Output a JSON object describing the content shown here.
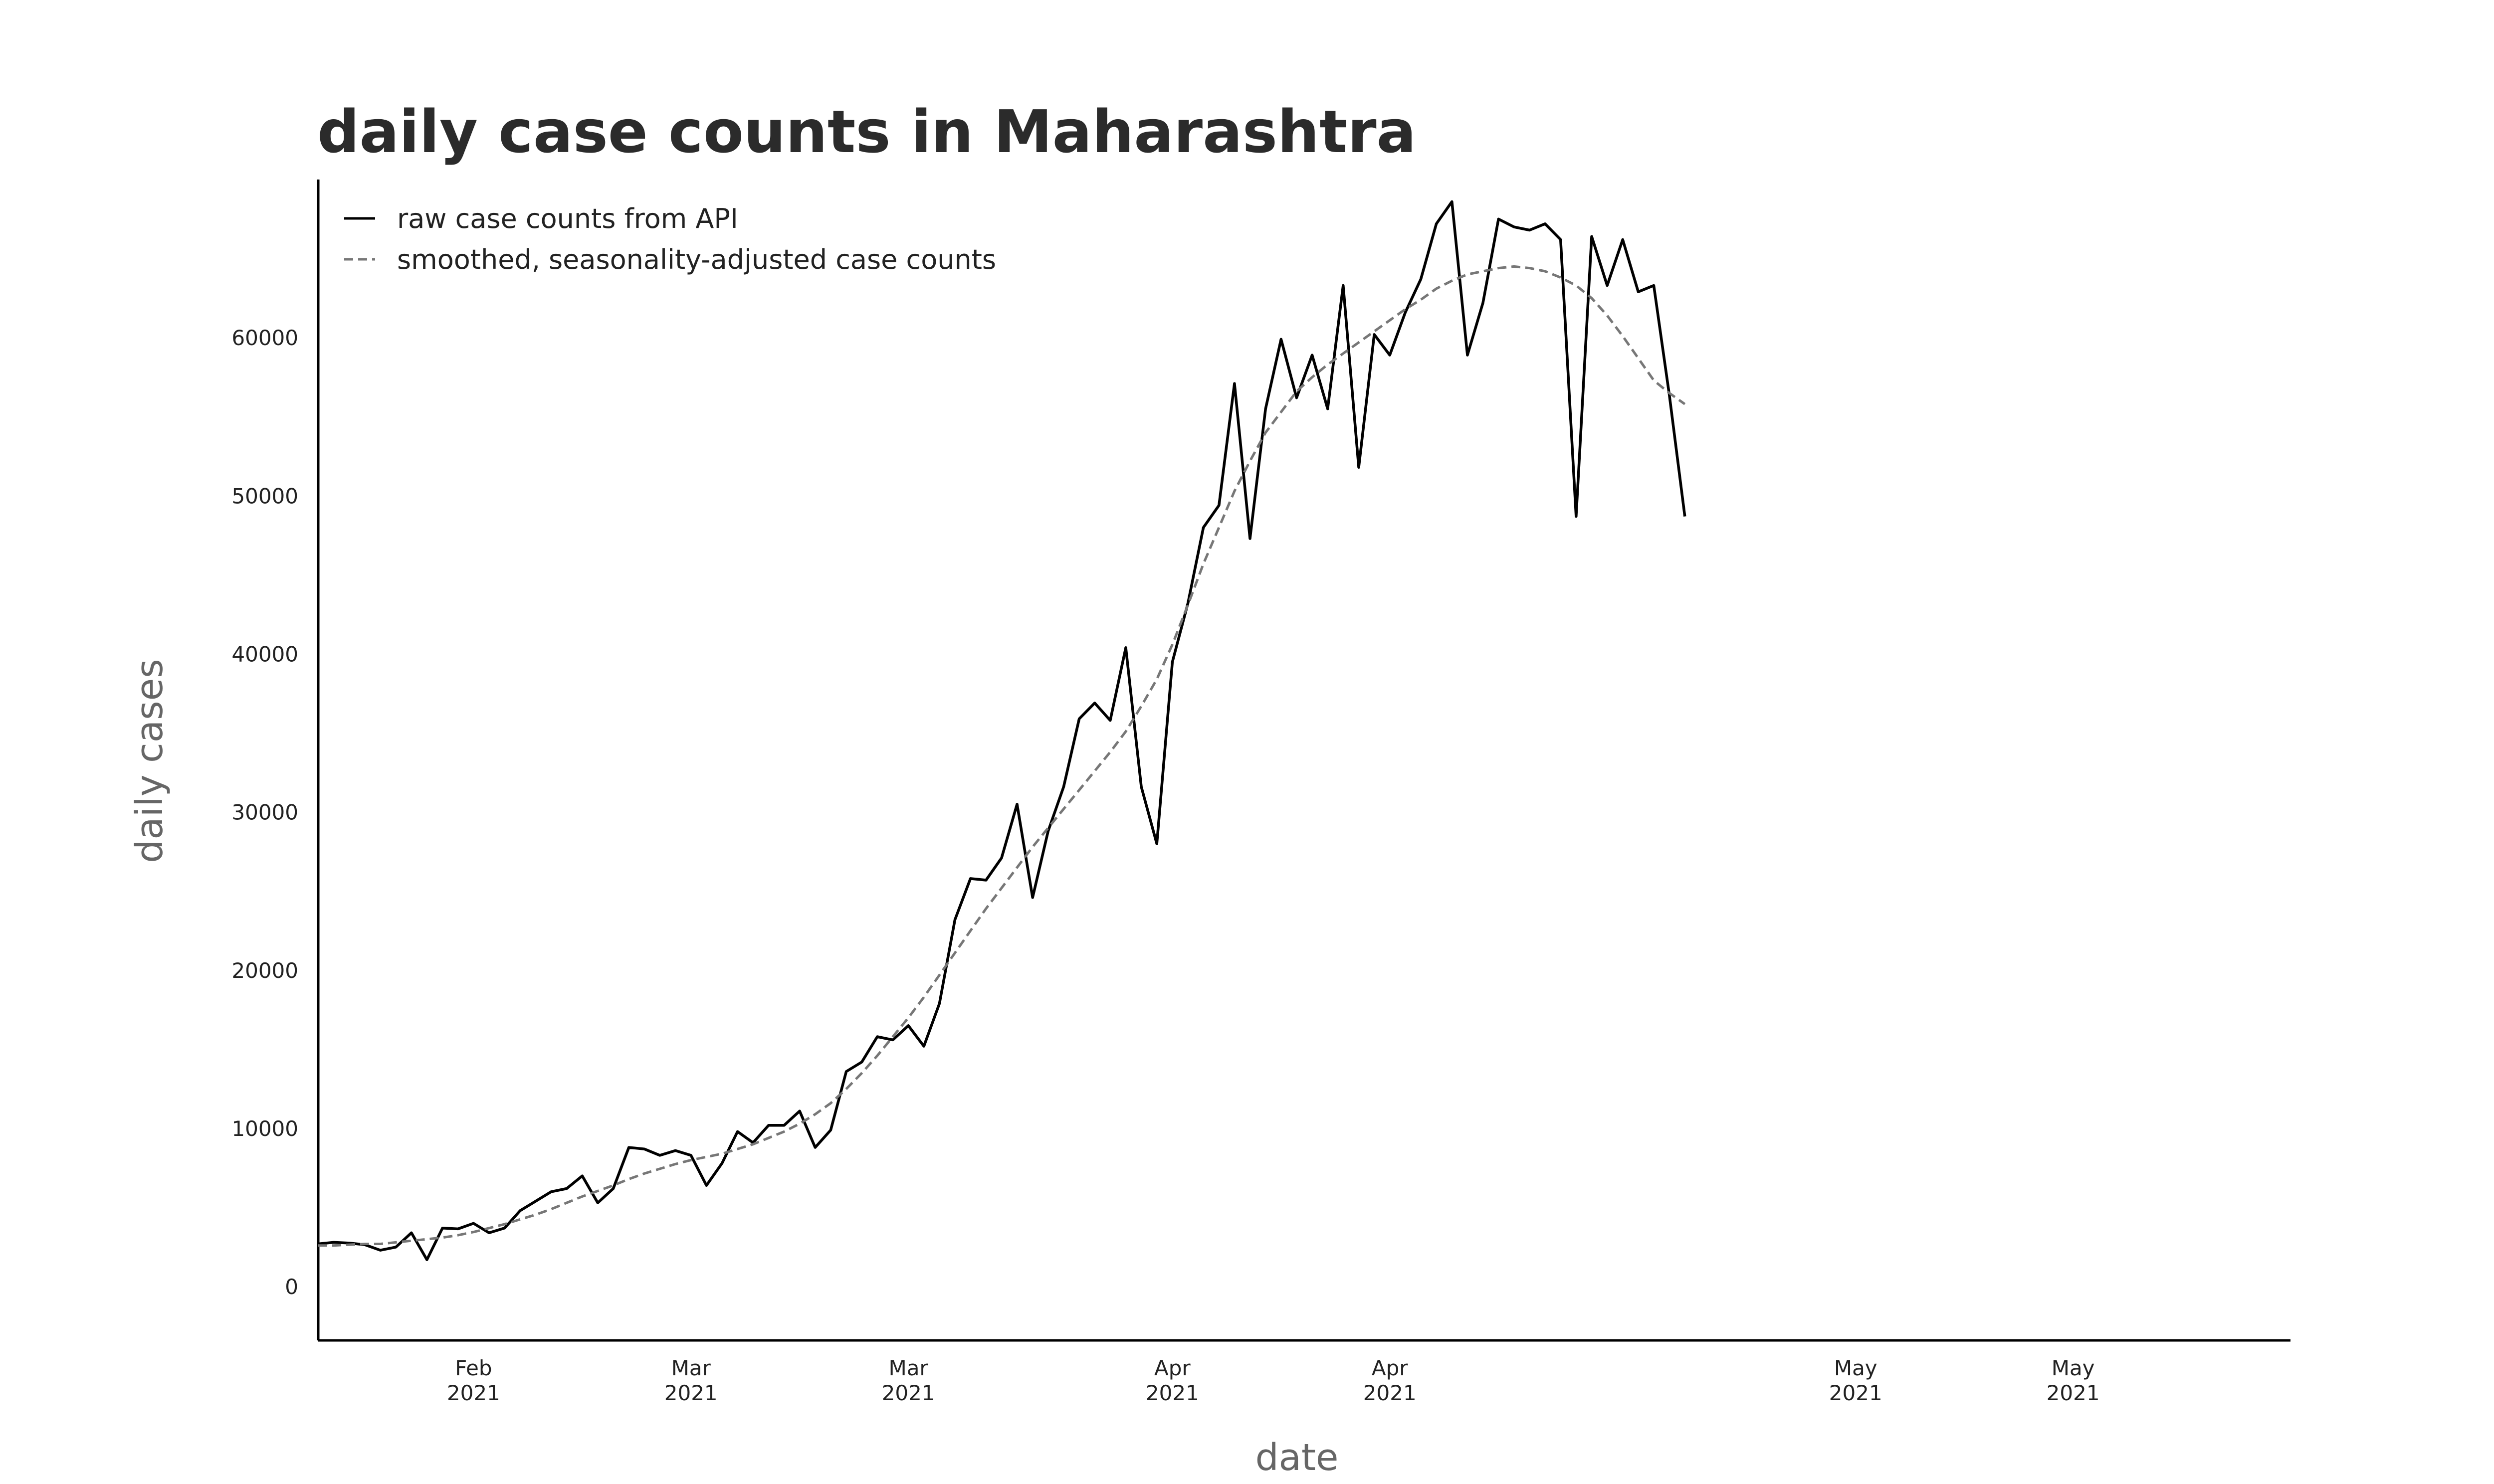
{
  "chart_data": {
    "type": "line",
    "title": "daily case counts in Maharashtra",
    "xlabel": "date",
    "ylabel": "daily cases",
    "x_start": "2021-01-15",
    "xlim": [
      "2021-01-15",
      "2021-05-22"
    ],
    "ylim": [
      -3400,
      70000
    ],
    "y_ticks": [
      0,
      10000,
      20000,
      30000,
      40000,
      50000,
      60000
    ],
    "x_ticks": [
      {
        "date": "2021-01-25",
        "month": "Feb",
        "year": "2021"
      },
      {
        "date": "2021-02-08",
        "month": "Mar",
        "year": "2021"
      },
      {
        "date": "2021-02-22",
        "month": "Mar",
        "year": "2021"
      },
      {
        "date": "2021-03-11",
        "month": "Apr",
        "year": "2021"
      },
      {
        "date": "2021-03-25",
        "month": "Apr",
        "year": "2021"
      },
      {
        "date": "2021-04-24",
        "month": "May",
        "year": "2021"
      },
      {
        "date": "2021-05-08",
        "month": "May",
        "year": "2021"
      }
    ],
    "grid": false,
    "legend_position": "top-left",
    "series": [
      {
        "name": "raw case counts from API",
        "style": "solid",
        "color": "#000000",
        "values": [
          2700,
          2800,
          2750,
          2650,
          2300,
          2500,
          3400,
          1700,
          3700,
          3650,
          4000,
          3400,
          3700,
          4800,
          5400,
          6000,
          6200,
          7000,
          5300,
          6200,
          8800,
          8700,
          8300,
          8600,
          8300,
          6400,
          7800,
          9800,
          9100,
          10200,
          10200,
          11100,
          8800,
          9900,
          13600,
          14200,
          15800,
          15600,
          16500,
          15200,
          17900,
          23200,
          25800,
          25700,
          27100,
          30500,
          24600,
          28800,
          31600,
          35900,
          36900,
          35800,
          40400,
          31600,
          28000,
          39500,
          43200,
          48000,
          49400,
          57100,
          47300,
          55500,
          59900,
          56200,
          58900,
          55500,
          63300,
          51800,
          60200,
          58900,
          61600,
          63700,
          67200,
          68600,
          58900,
          62200,
          67500,
          67000,
          66800,
          67200,
          66200,
          48700,
          66400,
          63300,
          66200,
          62900,
          63300,
          56400,
          48700
        ]
      },
      {
        "name": "smoothed, seasonality-adjusted case counts",
        "style": "dashed",
        "color": "#777777",
        "values": [
          2600,
          2600,
          2650,
          2700,
          2700,
          2800,
          2900,
          3000,
          3100,
          3250,
          3450,
          3700,
          3950,
          4250,
          4550,
          4900,
          5300,
          5700,
          6050,
          6400,
          6800,
          7150,
          7450,
          7750,
          8000,
          8200,
          8400,
          8700,
          9000,
          9400,
          9800,
          10300,
          10900,
          11600,
          12500,
          13500,
          14600,
          15800,
          17000,
          18300,
          19700,
          21100,
          22500,
          23900,
          25200,
          26500,
          27800,
          29000,
          30200,
          31400,
          32600,
          33800,
          35100,
          36700,
          38400,
          40600,
          43100,
          45700,
          48000,
          50300,
          52200,
          54000,
          55300,
          56600,
          57500,
          58300,
          59000,
          59700,
          60400,
          61100,
          61800,
          62400,
          63100,
          63600,
          64000,
          64200,
          64400,
          64500,
          64400,
          64200,
          63800,
          63300,
          62500,
          61400,
          60100,
          58700,
          57300,
          56500,
          55800
        ]
      }
    ]
  }
}
